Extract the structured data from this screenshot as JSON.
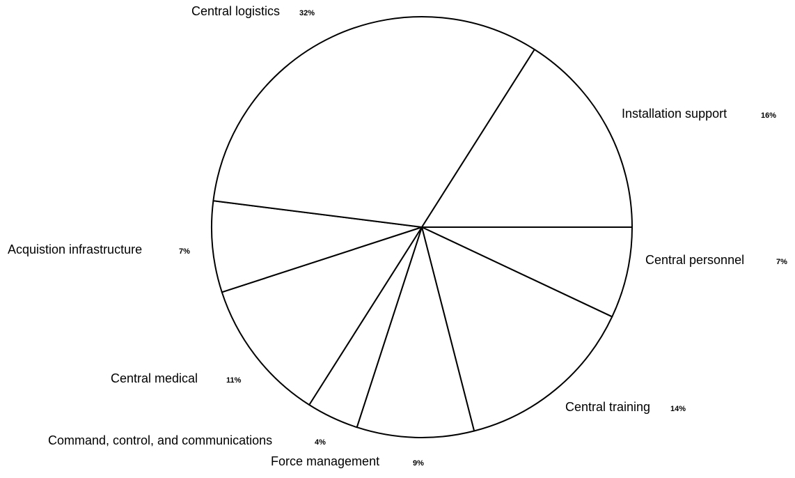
{
  "chart_data": {
    "type": "pie",
    "categories": [
      "Central personnel",
      "Central training",
      "Force management",
      "Command, control, and communications",
      "Central medical",
      "Acquistion infrastructure",
      "Central logistics",
      "Installation support"
    ],
    "values": [
      7,
      14,
      9,
      4,
      11,
      7,
      32,
      16
    ],
    "value_labels": [
      "7%",
      "14%",
      "9%",
      "4%",
      "11%",
      "7%",
      "32%",
      "16%"
    ],
    "color": "#ffffff"
  }
}
